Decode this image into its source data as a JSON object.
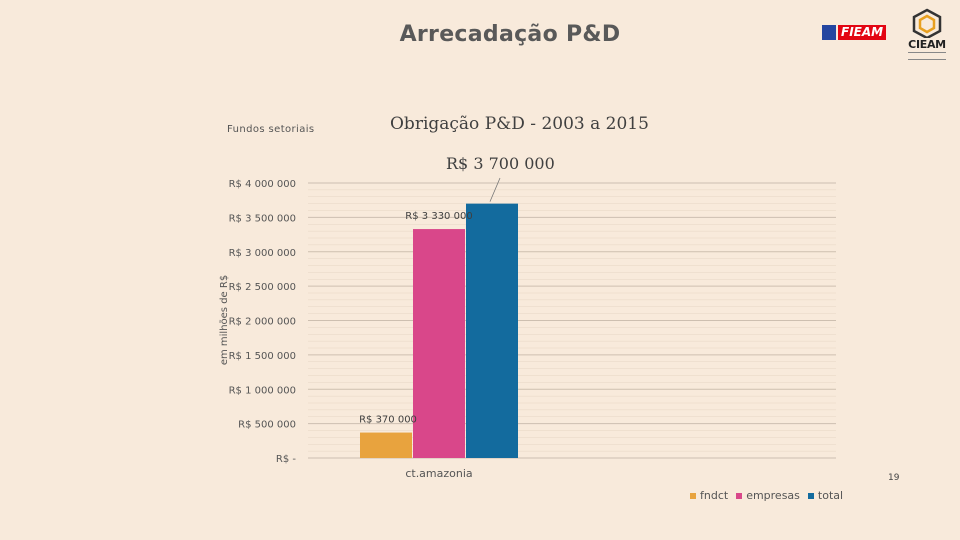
{
  "slide": {
    "title": "Arrecadação P&D",
    "subtitle": "Fundos setoriais",
    "page_number": "19"
  },
  "logos": {
    "fieam_text": "FIEAM",
    "cieam_text": "CIEAM"
  },
  "colors": {
    "background": "#f8eadb",
    "fndct": "#e8a33e",
    "empresas": "#d9478a",
    "total": "#136b9e"
  },
  "chart_data": {
    "type": "bar",
    "title": "Obrigação P&D - 2003 a 2015",
    "ylabel": "em milhões de R$",
    "xlabel": "",
    "categories": [
      "ct.amazonia"
    ],
    "series": [
      {
        "name": "fndct",
        "values": [
          370000
        ],
        "label": "R$ 370 000"
      },
      {
        "name": "empresas",
        "values": [
          3330000
        ],
        "label": "R$ 3 330 000"
      },
      {
        "name": "total",
        "values": [
          3700000
        ],
        "label": "R$ 3 700 000"
      }
    ],
    "ylim": [
      0,
      4000000
    ],
    "yticks": [
      {
        "value": 0,
        "label": "R$ -"
      },
      {
        "value": 500000,
        "label": "R$ 500 000"
      },
      {
        "value": 1000000,
        "label": "R$ 1 000 000"
      },
      {
        "value": 1500000,
        "label": "R$ 1 500 000"
      },
      {
        "value": 2000000,
        "label": "R$ 2 000 000"
      },
      {
        "value": 2500000,
        "label": "R$ 2 500 000"
      },
      {
        "value": 3000000,
        "label": "R$ 3 000 000"
      },
      {
        "value": 3500000,
        "label": "R$ 3 500 000"
      },
      {
        "value": 4000000,
        "label": "R$ 4 000 000"
      }
    ],
    "grid": true,
    "legend": "bottom-right"
  }
}
